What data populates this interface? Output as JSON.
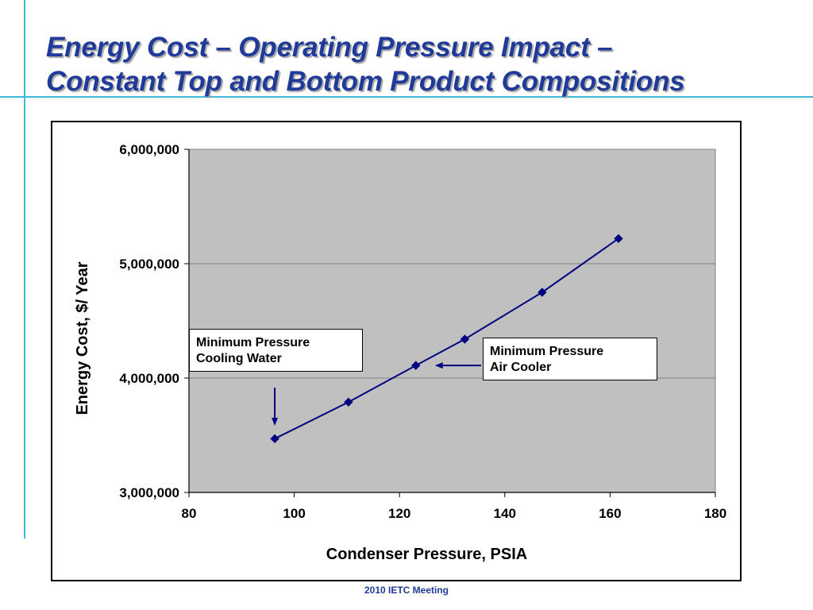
{
  "slide": {
    "title_line1": "Energy Cost – Operating Pressure Impact –",
    "title_line2": "Constant Top and Bottom Product Compositions",
    "footer": "2010 IETC Meeting"
  },
  "colors": {
    "title": "#1f3a99",
    "accent_lines": "#3fb8d8",
    "plot_area": "#c0c0c0",
    "series": "#000080"
  },
  "annotations": [
    {
      "line1": "Minimum Pressure",
      "line2": "Cooling Water"
    },
    {
      "line1": "Minimum Pressure",
      "line2": "Air Cooler"
    }
  ],
  "chart_data": {
    "type": "line",
    "title": "",
    "xlabel": "Condenser Pressure, PSIA",
    "ylabel": "Energy Cost, $/ Year",
    "xlim": [
      80,
      180
    ],
    "ylim": [
      3000000,
      6000000
    ],
    "xticks": [
      80,
      100,
      120,
      140,
      160,
      180
    ],
    "xtick_labels": [
      "80",
      "100",
      "120",
      "140",
      "160",
      "180"
    ],
    "yticks": [
      3000000,
      4000000,
      5000000,
      6000000
    ],
    "ytick_labels": [
      "3,000,000",
      "4,000,000",
      "5,000,000",
      "6,000,000"
    ],
    "grid": "horizontal",
    "legend": "none",
    "marker": "diamond",
    "series": [
      {
        "x": [
          96.3,
          110.3,
          123.1,
          132.4,
          147.1,
          161.6
        ],
        "y": [
          3470000,
          3790000,
          4110000,
          4340000,
          4750000,
          5220000
        ]
      }
    ]
  }
}
